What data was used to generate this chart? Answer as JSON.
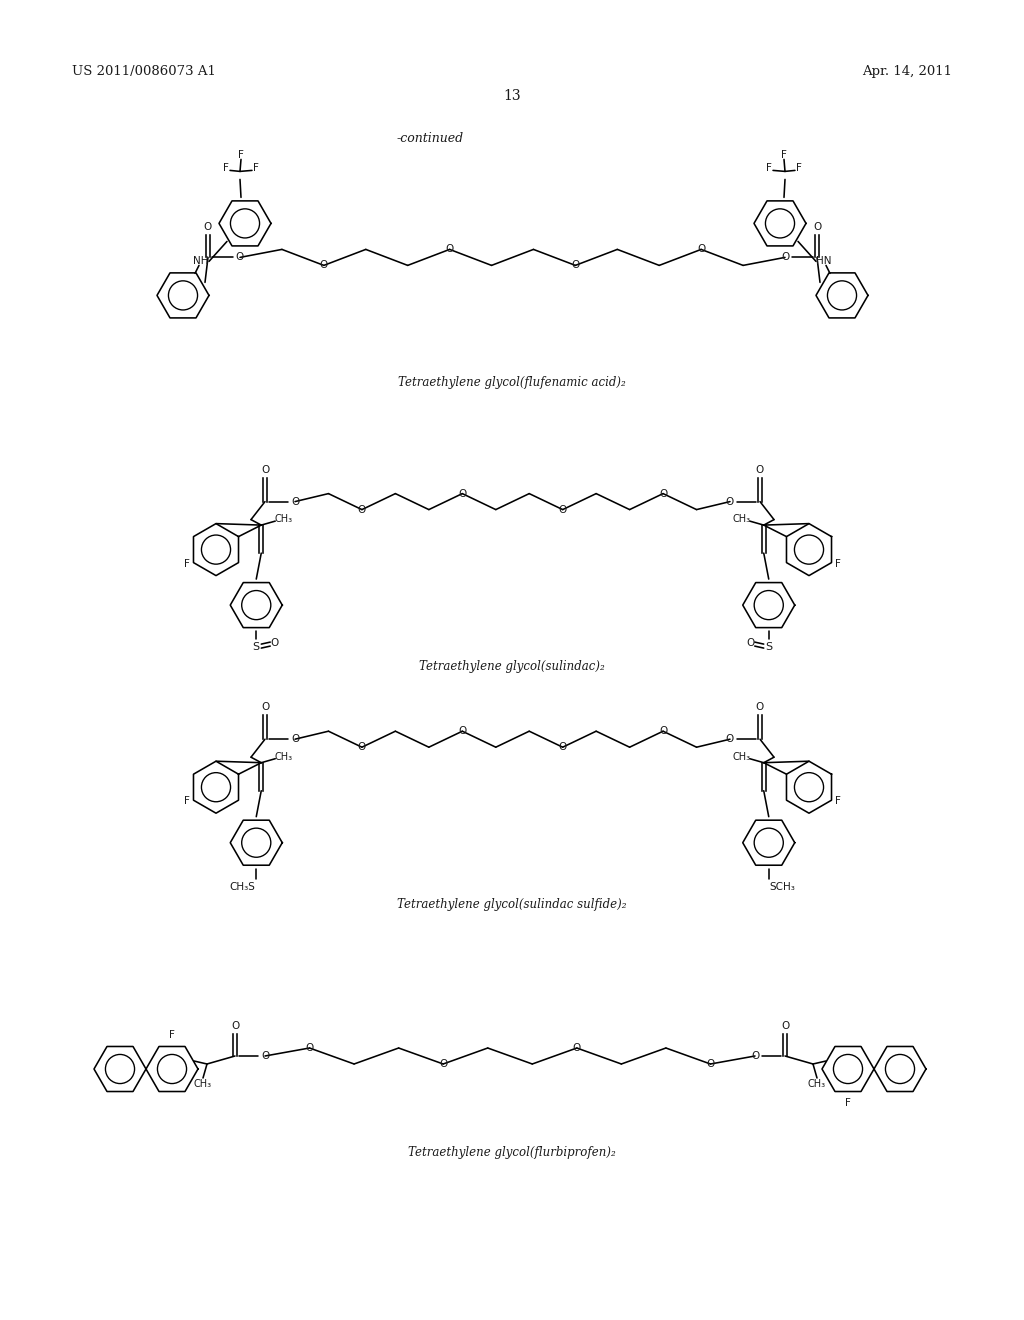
{
  "bg": "#ffffff",
  "text": "#1a1a1a",
  "lw": 1.15,
  "header_left": "US 2011/0086073 A1",
  "header_right": "Apr. 14, 2011",
  "page_num": "13",
  "continued": "-continued",
  "label1": "Tetraethylene glycol(flufenamic acid)",
  "label2": "Tetraethylene glycol(sulindac)",
  "label3": "Tetraethylene glycol(sulindac sulfide)",
  "label4": "Tetraethylene glycol(flurbiprofen)",
  "sub2": "₂"
}
